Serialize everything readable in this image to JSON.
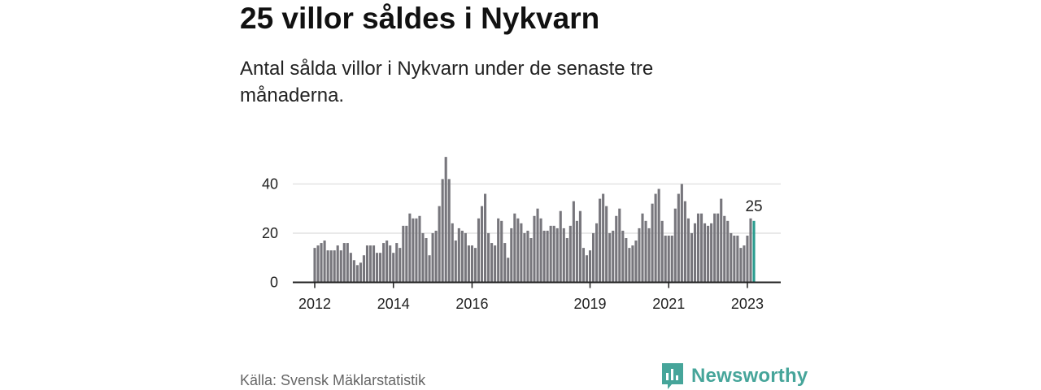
{
  "title": "25 villor såldes i Nykvarn",
  "subtitle": "Antal sålda villor i Nykvarn under de senaste tre månaderna.",
  "source": "Källa: Svensk Mäklarstatistik",
  "brand": {
    "name": "Newsworthy",
    "icon": "newsworthy-logo-icon"
  },
  "colors": {
    "bar": "#77767c",
    "highlight": "#2a9d8f",
    "grid": "#dcdcdc",
    "axis": "#222222",
    "brand": "#46a59a"
  },
  "chart_data": {
    "type": "bar",
    "title": "Antal sålda villor i Nykvarn",
    "xlabel": "",
    "ylabel": "",
    "ylim": [
      0,
      56
    ],
    "y_ticks": [
      0,
      20,
      40
    ],
    "x_tick_labels": [
      {
        "label": "2012",
        "index": 0
      },
      {
        "label": "2014",
        "index": 24
      },
      {
        "label": "2016",
        "index": 48
      },
      {
        "label": "2019",
        "index": 84
      },
      {
        "label": "2021",
        "index": 108
      },
      {
        "label": "2023",
        "index": 132
      }
    ],
    "start": "2012-01",
    "end": "2023-03",
    "values": [
      14,
      15,
      16,
      17,
      13,
      13,
      13,
      15,
      13,
      16,
      16,
      12,
      9,
      7,
      8,
      11,
      15,
      15,
      15,
      12,
      12,
      16,
      17,
      15,
      12,
      16,
      14,
      23,
      23,
      28,
      26,
      26,
      27,
      20,
      18,
      11,
      20,
      21,
      31,
      42,
      51,
      42,
      24,
      17,
      22,
      21,
      20,
      15,
      15,
      14,
      26,
      31,
      36,
      20,
      16,
      15,
      26,
      25,
      16,
      10,
      22,
      28,
      26,
      24,
      20,
      21,
      18,
      27,
      30,
      26,
      21,
      21,
      23,
      23,
      22,
      29,
      22,
      18,
      23,
      33,
      25,
      29,
      14,
      11,
      13,
      20,
      24,
      34,
      36,
      31,
      20,
      21,
      27,
      30,
      21,
      18,
      14,
      15,
      17,
      22,
      28,
      25,
      22,
      32,
      36,
      38,
      25,
      19,
      19,
      19,
      30,
      36,
      40,
      33,
      26,
      20,
      24,
      28,
      28,
      24,
      23,
      24,
      28,
      28,
      34,
      27,
      25,
      20,
      19,
      19,
      14,
      15,
      19,
      26,
      25
    ],
    "highlight_index": 134,
    "highlight_label": "25"
  }
}
